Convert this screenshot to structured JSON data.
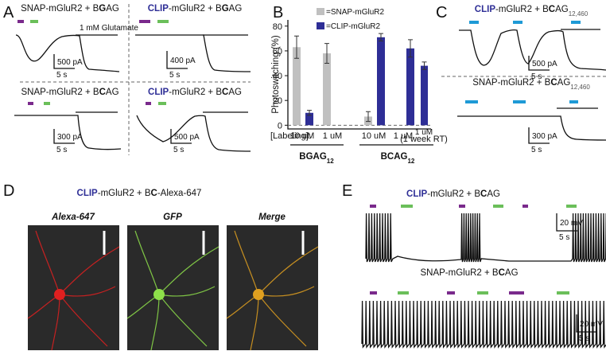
{
  "panels": {
    "a": {
      "letter": "A",
      "titles": [
        [
          "SNAP",
          "-mGluR2 + B",
          "G",
          "AG"
        ],
        [
          "CLIP",
          "-mGluR2 + B",
          "G",
          "AG"
        ],
        [
          "SNAP",
          "-mGluR2 + B",
          "C",
          "AG"
        ],
        [
          "CLIP",
          "-mGluR2 + B",
          "C",
          "AG"
        ]
      ],
      "glutamate": "1 mM Glutamate",
      "scales": [
        [
          "500 pA",
          "5 s"
        ],
        [
          "400 pA",
          "5 s"
        ],
        [
          "300 pA",
          "5 s"
        ],
        [
          "500 pA",
          "5 s"
        ]
      ]
    },
    "b": {
      "letter": "B"
    },
    "c": {
      "letter": "C",
      "titles": [
        [
          "CLIP",
          "-mGluR2 + B",
          "C",
          "AG",
          "12,460"
        ],
        [
          "SNAP",
          "-mGluR2 + B",
          "C",
          "AG",
          "12,460"
        ]
      ],
      "scales": [
        [
          "500 pA",
          "5 s"
        ],
        [
          "300 pA",
          "5 s"
        ]
      ]
    },
    "d": {
      "letter": "D",
      "title": [
        "CLIP",
        "-mGluR2 + B",
        "C",
        "-Alexa-647"
      ],
      "images": [
        "Alexa-647",
        "GFP",
        "Merge"
      ]
    },
    "e": {
      "letter": "E",
      "titles": [
        [
          "CLIP",
          "-mGluR2 + B",
          "C",
          "AG"
        ],
        [
          "SNAP",
          "-mGluR2 + B",
          "C",
          "AG"
        ]
      ],
      "scales": [
        [
          "20 mV",
          "5 s"
        ],
        [
          "20 mV",
          "5 s"
        ]
      ]
    }
  },
  "chart_data": {
    "type": "bar",
    "y_label": "Photoswitching (%)",
    "row_label": "[Labeling]:",
    "categories": [
      "10 uM",
      "1 uM",
      "10 uM",
      "1 uM",
      "1 uM"
    ],
    "category_notes": [
      null,
      null,
      null,
      null,
      "(1 week RT)"
    ],
    "groups": [
      {
        "text": "BGAG",
        "sub": "12"
      },
      {
        "text": "BCAG",
        "sub": "12"
      }
    ],
    "series": [
      {
        "name": "=SNAP-mGluR2",
        "color": "#c0c0c0",
        "values": [
          63,
          58,
          7,
          0,
          null
        ],
        "errors": [
          9,
          8,
          4,
          0,
          null
        ]
      },
      {
        "name": "=CLIP-mGluR2",
        "color": "#2e2e96",
        "values": [
          10,
          0,
          71,
          62,
          48
        ],
        "errors": [
          2,
          0,
          3,
          7,
          3
        ]
      }
    ],
    "ylim": [
      -3,
      85
    ],
    "yticks": [
      0,
      20,
      40,
      60,
      80
    ]
  }
}
